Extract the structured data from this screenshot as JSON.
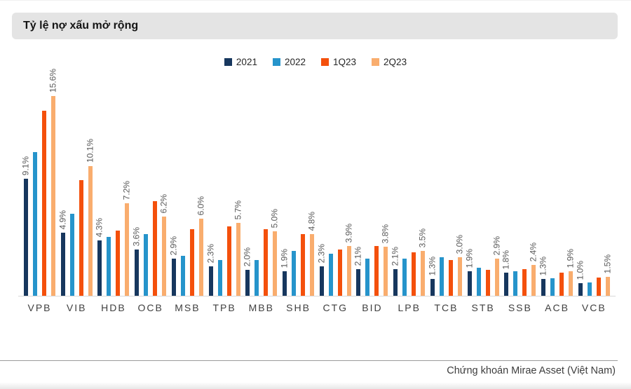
{
  "title": "Tỷ lệ nợ xấu mở rộng",
  "source": "Chứng khoán Mirae Asset (Việt Nam)",
  "chart_data": {
    "type": "bar",
    "title": "Tỷ lệ nợ xấu mở rộng",
    "value_suffix": "%",
    "ylim": [
      0,
      16
    ],
    "grid": false,
    "legend_position": "top-center",
    "axis_line_color": "#d9d9d9",
    "label_color": "#595959",
    "categories": [
      "VPB",
      "VIB",
      "HDB",
      "OCB",
      "MSB",
      "TPB",
      "MBB",
      "SHB",
      "CTG",
      "BID",
      "LPB",
      "TCB",
      "STB",
      "SSB",
      "ACB",
      "VCB"
    ],
    "series": [
      {
        "name": "2021",
        "color": "#17375E",
        "labeled": true,
        "values": [
          9.1,
          4.9,
          4.3,
          3.6,
          2.9,
          2.3,
          2.0,
          1.9,
          2.3,
          2.1,
          2.1,
          1.3,
          1.9,
          1.8,
          1.3,
          1.0
        ]
      },
      {
        "name": "2022",
        "color": "#2694CB",
        "labeled": false,
        "values": [
          11.2,
          6.4,
          4.6,
          4.8,
          3.1,
          2.8,
          2.8,
          3.5,
          3.3,
          2.9,
          2.9,
          3.0,
          2.2,
          1.9,
          1.35,
          1.05
        ]
      },
      {
        "name": "1Q23",
        "color": "#F4500C",
        "labeled": false,
        "values": [
          14.4,
          9.0,
          5.1,
          7.4,
          5.2,
          5.4,
          5.2,
          4.8,
          3.6,
          3.9,
          3.4,
          2.8,
          2.0,
          2.1,
          1.8,
          1.4
        ]
      },
      {
        "name": "2Q23",
        "color": "#F9AD6E",
        "labeled": true,
        "values": [
          15.6,
          10.1,
          7.2,
          6.2,
          6.0,
          5.7,
          5.0,
          4.8,
          3.9,
          3.8,
          3.5,
          3.0,
          2.9,
          2.4,
          1.9,
          1.5
        ]
      }
    ]
  }
}
